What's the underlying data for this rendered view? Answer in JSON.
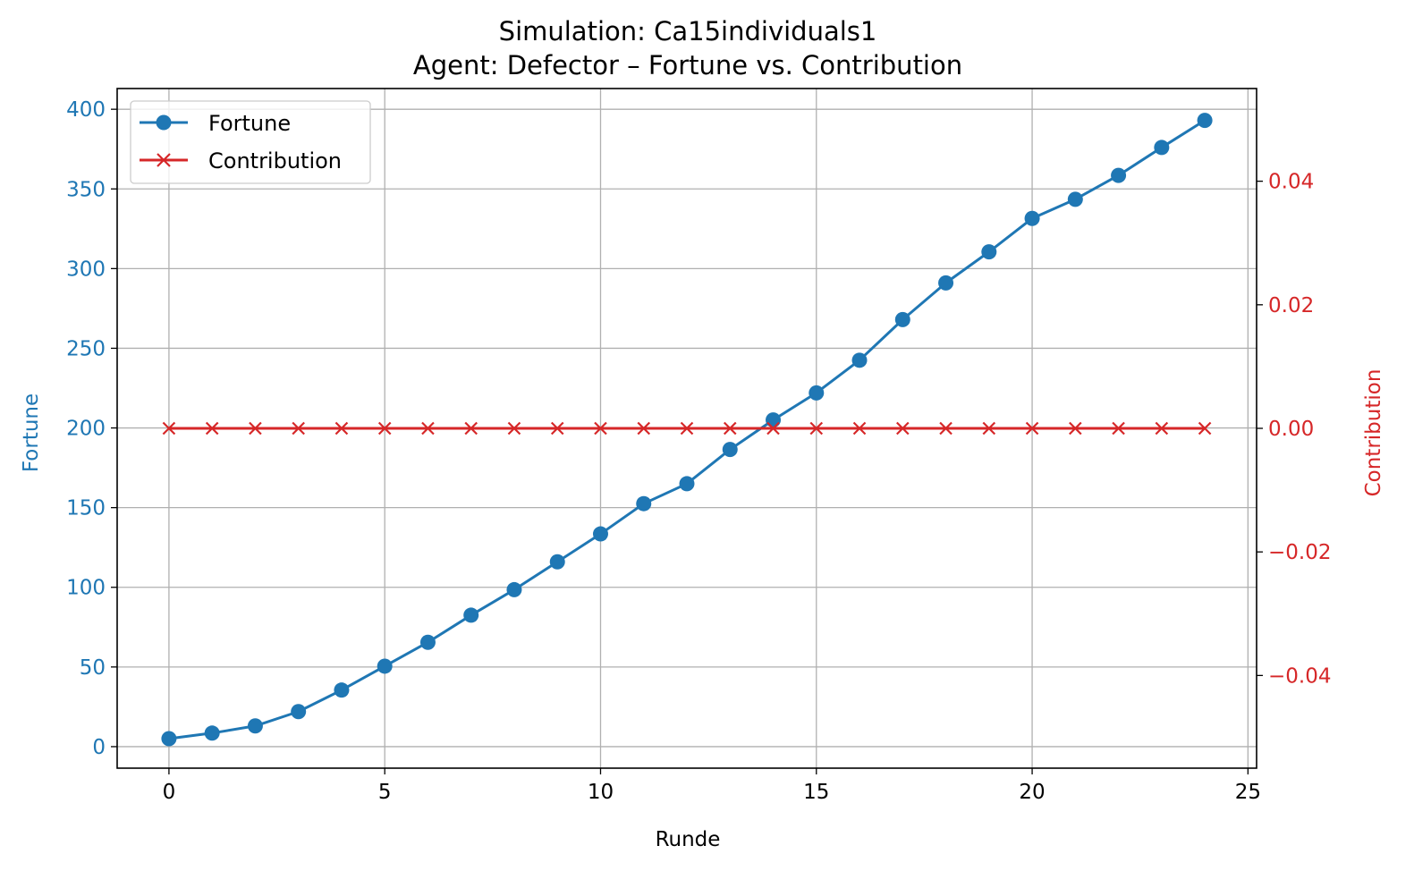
{
  "chart_data": {
    "type": "line",
    "title": "Simulation: Ca15individuals1",
    "subtitle": "Agent: Defector – Fortune vs. Contribution",
    "xlabel": "Runde",
    "ylabel_left": "Fortune",
    "ylabel_right": "Contribution",
    "xlim": [
      -1.2,
      25.2
    ],
    "ylim_left": [
      -13.5,
      413
    ],
    "ylim_right": [
      -0.055,
      0.055
    ],
    "x_ticks": [
      0,
      5,
      10,
      15,
      20,
      25
    ],
    "x_tick_labels": [
      "0",
      "5",
      "10",
      "15",
      "20",
      "25"
    ],
    "y_left_ticks": [
      0,
      50,
      100,
      150,
      200,
      250,
      300,
      350,
      400
    ],
    "y_left_tick_labels": [
      "0",
      "50",
      "100",
      "150",
      "200",
      "250",
      "300",
      "350",
      "400"
    ],
    "y_right_ticks": [
      -0.04,
      -0.02,
      0.0,
      0.02,
      0.04
    ],
    "y_right_tick_labels": [
      "−0.04",
      "−0.02",
      "0.00",
      "0.02",
      "0.04"
    ],
    "grid": true,
    "legend_position": "top-left",
    "x": [
      0,
      1,
      2,
      3,
      4,
      5,
      6,
      7,
      8,
      9,
      10,
      11,
      12,
      13,
      14,
      15,
      16,
      17,
      18,
      19,
      20,
      21,
      22,
      23,
      24
    ],
    "series": [
      {
        "name": "Fortune",
        "axis": "left",
        "color": "#1f77b4",
        "marker": "circle",
        "values": [
          5,
          8.5,
          13,
          22,
          35.5,
          50.5,
          65.5,
          82.5,
          98.5,
          116,
          133.5,
          152.5,
          165,
          186.5,
          205,
          222,
          242.5,
          268,
          291,
          310.5,
          331.5,
          343.5,
          358.5,
          376,
          393
        ]
      },
      {
        "name": "Contribution",
        "axis": "right",
        "color": "#d62728",
        "marker": "x",
        "values": [
          0,
          0,
          0,
          0,
          0,
          0,
          0,
          0,
          0,
          0,
          0,
          0,
          0,
          0,
          0,
          0,
          0,
          0,
          0,
          0,
          0,
          0,
          0,
          0,
          0
        ]
      }
    ],
    "colors": {
      "left_axis": "#1f77b4",
      "right_axis": "#d62728",
      "grid": "#b0b0b0"
    }
  }
}
